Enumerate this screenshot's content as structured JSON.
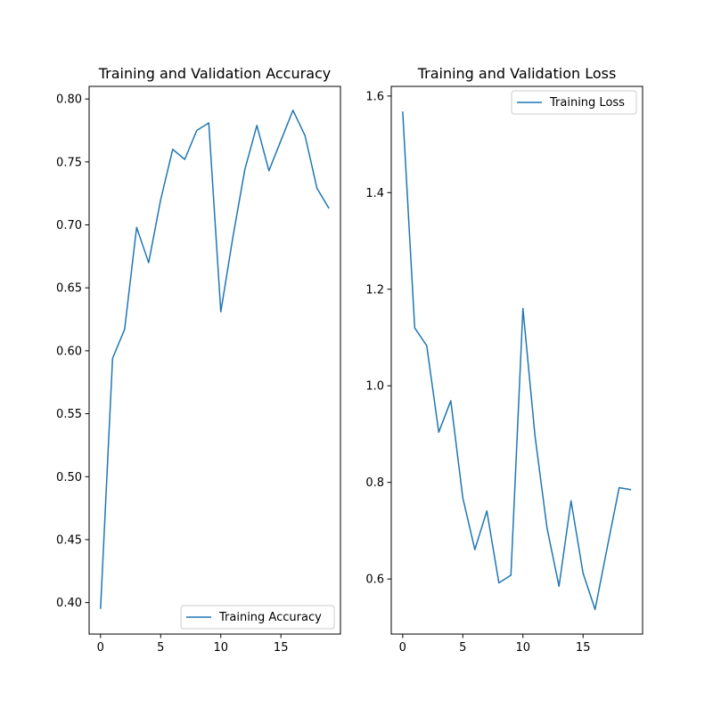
{
  "figure": {
    "background": "#ffffff",
    "line_color": "#1f77b4"
  },
  "chart_data": [
    {
      "type": "line",
      "title": "Training and Validation Accuracy",
      "xlabel": "",
      "ylabel": "",
      "x": [
        0,
        1,
        2,
        3,
        4,
        5,
        6,
        7,
        8,
        9,
        10,
        11,
        12,
        13,
        14,
        15,
        16,
        17,
        18,
        19
      ],
      "series": [
        {
          "name": "Training Accuracy",
          "values": [
            0.395,
            0.594,
            0.617,
            0.698,
            0.67,
            0.72,
            0.76,
            0.752,
            0.775,
            0.781,
            0.631,
            0.69,
            0.744,
            0.779,
            0.743,
            0.767,
            0.791,
            0.771,
            0.729,
            0.713
          ]
        }
      ],
      "xlim": [
        -0.95,
        19.95
      ],
      "ylim": [
        0.375,
        0.81
      ],
      "xticks": [
        0,
        5,
        10,
        15
      ],
      "xtick_labels": [
        "0",
        "5",
        "10",
        "15"
      ],
      "yticks": [
        0.4,
        0.45,
        0.5,
        0.55,
        0.6,
        0.65,
        0.7,
        0.75,
        0.8
      ],
      "ytick_labels": [
        "0.40",
        "0.45",
        "0.50",
        "0.55",
        "0.60",
        "0.65",
        "0.70",
        "0.75",
        "0.80"
      ],
      "grid": false,
      "legend": "lower-right"
    },
    {
      "type": "line",
      "title": "Training and Validation Loss",
      "xlabel": "",
      "ylabel": "",
      "x": [
        0,
        1,
        2,
        3,
        4,
        5,
        6,
        7,
        8,
        9,
        10,
        11,
        12,
        13,
        14,
        15,
        16,
        17,
        18,
        19
      ],
      "series": [
        {
          "name": "Training Loss",
          "values": [
            1.568,
            1.12,
            1.083,
            0.904,
            0.969,
            0.768,
            0.661,
            0.741,
            0.592,
            0.608,
            1.16,
            0.897,
            0.706,
            0.585,
            0.762,
            0.612,
            0.537,
            0.664,
            0.789,
            0.785
          ]
        }
      ],
      "xlim": [
        -0.95,
        19.95
      ],
      "ylim": [
        0.486,
        1.62
      ],
      "xticks": [
        0,
        5,
        10,
        15
      ],
      "xtick_labels": [
        "0",
        "5",
        "10",
        "15"
      ],
      "yticks": [
        0.6,
        0.8,
        1.0,
        1.2,
        1.4,
        1.6
      ],
      "ytick_labels": [
        "0.6",
        "0.8",
        "1.0",
        "1.2",
        "1.4",
        "1.6"
      ],
      "grid": false,
      "legend": "upper-right"
    }
  ]
}
